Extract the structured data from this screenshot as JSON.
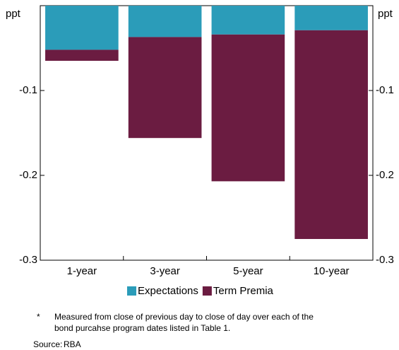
{
  "chart_data": {
    "type": "stacked_bar",
    "y_label": "ppt",
    "categories": [
      "1-year",
      "3-year",
      "5-year",
      "10-year"
    ],
    "series": [
      {
        "name": "Expectations",
        "color": "#2b9cb9",
        "values": [
          -0.052,
          -0.037,
          -0.034,
          -0.029
        ]
      },
      {
        "name": "Term Premia",
        "color": "#6b1c41",
        "values": [
          -0.013,
          -0.119,
          -0.173,
          -0.246
        ]
      }
    ],
    "ylim": [
      -0.3,
      0
    ],
    "yticks": [
      -0.3,
      -0.2,
      -0.1
    ],
    "grid": false,
    "notes": {
      "marker": "*",
      "lines": [
        "Measured from close of previous day to close of day over each of the",
        "bond purcahse program dates listed in Table 1."
      ]
    },
    "source": {
      "label": "Source:",
      "text": "RBA"
    }
  }
}
